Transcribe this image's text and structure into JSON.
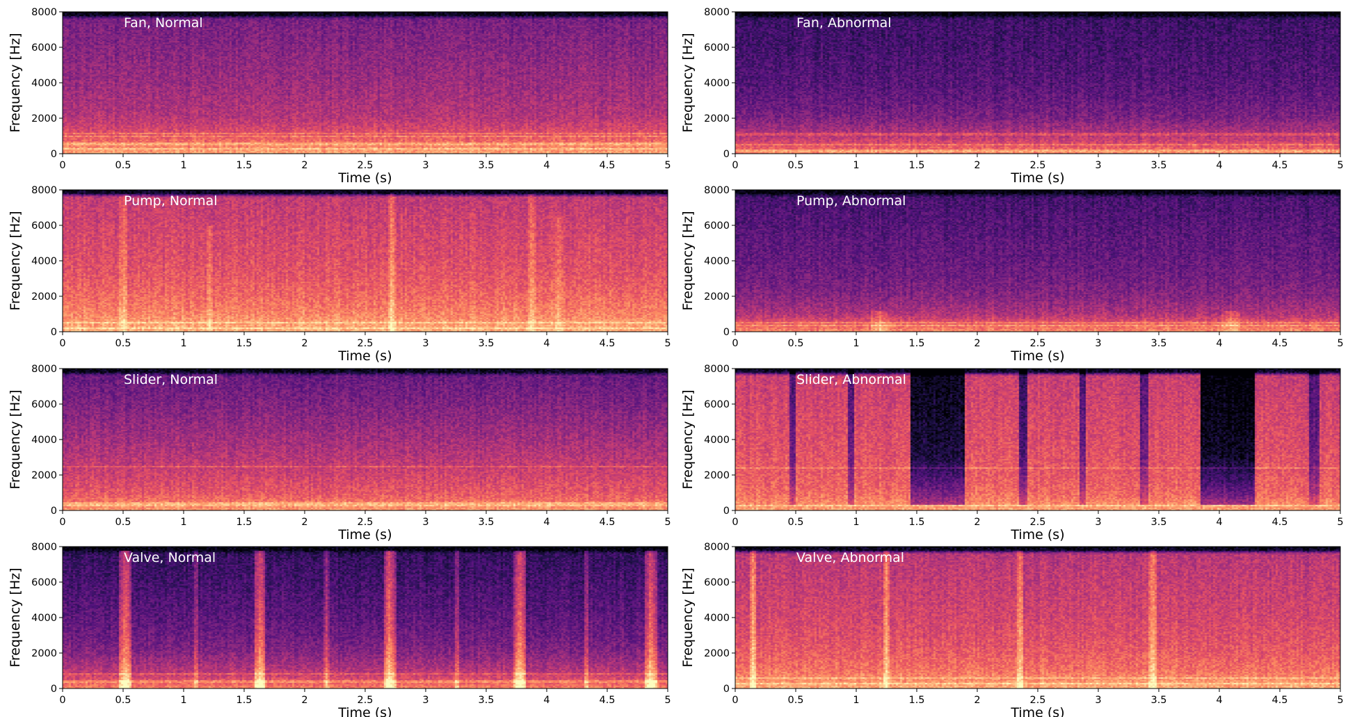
{
  "figure": {
    "background": "#ffffff"
  },
  "colormap": {
    "name": "magma",
    "stops": [
      "#000004",
      "#1d1147",
      "#51127c",
      "#822681",
      "#b73779",
      "#e75263",
      "#fc8961",
      "#fec287",
      "#fcfdbf"
    ]
  },
  "chart_data": [
    {
      "type": "heatmap",
      "title": "Fan, Normal",
      "xlabel": "Time (s)",
      "ylabel": "Frequency [Hz]",
      "xlim": [
        0,
        5
      ],
      "ylim": [
        0,
        8000
      ],
      "xticks": [
        "0",
        "0.5",
        "1",
        "1.5",
        "2",
        "2.5",
        "3",
        "3.5",
        "4",
        "4.5",
        "5"
      ],
      "yticks": [
        "0",
        "2000",
        "4000",
        "6000",
        "8000"
      ],
      "intensity_by_frequency": {
        "freq_hz": [
          0,
          500,
          1000,
          2000,
          3000,
          4000,
          6000,
          7600,
          7800,
          8000
        ],
        "level": [
          0.82,
          0.72,
          0.62,
          0.5,
          0.46,
          0.43,
          0.38,
          0.34,
          0.05,
          0.02
        ]
      },
      "harmonic_lines_hz": [
        300,
        550,
        1000,
        1150
      ],
      "bursts": [],
      "dips": []
    },
    {
      "type": "heatmap",
      "title": "Fan, Abnormal",
      "xlabel": "Time (s)",
      "ylabel": "Frequency [Hz]",
      "xlim": [
        0,
        5
      ],
      "ylim": [
        0,
        8000
      ],
      "xticks": [
        "0",
        "0.5",
        "1",
        "1.5",
        "2",
        "2.5",
        "3",
        "3.5",
        "4",
        "4.5",
        "5"
      ],
      "yticks": [
        "0",
        "2000",
        "4000",
        "6000",
        "8000"
      ],
      "intensity_by_frequency": {
        "freq_hz": [
          0,
          500,
          1000,
          2000,
          3000,
          4000,
          6000,
          7600,
          7800,
          8000
        ],
        "level": [
          0.74,
          0.6,
          0.5,
          0.36,
          0.3,
          0.26,
          0.22,
          0.2,
          0.03,
          0.01
        ]
      },
      "harmonic_lines_hz": [
        150,
        500,
        1100
      ],
      "bursts": [],
      "dips": []
    },
    {
      "type": "heatmap",
      "title": "Pump, Normal",
      "xlabel": "Time (s)",
      "ylabel": "Frequency [Hz]",
      "xlim": [
        0,
        5
      ],
      "ylim": [
        0,
        8000
      ],
      "xticks": [
        "0",
        "0.5",
        "1",
        "1.5",
        "2",
        "2.5",
        "3",
        "3.5",
        "4",
        "4.5",
        "5"
      ],
      "yticks": [
        "0",
        "2000",
        "4000",
        "6000",
        "8000"
      ],
      "intensity_by_frequency": {
        "freq_hz": [
          0,
          500,
          1000,
          2000,
          3000,
          4000,
          6000,
          7600,
          7800,
          8000
        ],
        "level": [
          0.84,
          0.8,
          0.74,
          0.68,
          0.63,
          0.6,
          0.56,
          0.52,
          0.08,
          0.03
        ]
      },
      "harmonic_lines_hz": [
        200,
        500
      ],
      "bursts": [
        {
          "t": 0.5,
          "width_s": 0.03,
          "fmax": 8000,
          "gain": 0.12
        },
        {
          "t": 1.22,
          "width_s": 0.03,
          "fmax": 6000,
          "gain": 0.1
        },
        {
          "t": 2.72,
          "width_s": 0.03,
          "fmax": 8000,
          "gain": 0.16
        },
        {
          "t": 3.88,
          "width_s": 0.03,
          "fmax": 8000,
          "gain": 0.12
        },
        {
          "t": 4.1,
          "width_s": 0.03,
          "fmax": 6500,
          "gain": 0.1
        }
      ],
      "dips": []
    },
    {
      "type": "heatmap",
      "title": "Pump, Abnormal",
      "xlabel": "Time (s)",
      "ylabel": "Frequency [Hz]",
      "xlim": [
        0,
        5
      ],
      "ylim": [
        0,
        8000
      ],
      "xticks": [
        "0",
        "0.5",
        "1",
        "1.5",
        "2",
        "2.5",
        "3",
        "3.5",
        "4",
        "4.5",
        "5"
      ],
      "yticks": [
        "0",
        "2000",
        "4000",
        "6000",
        "8000"
      ],
      "intensity_by_frequency": {
        "freq_hz": [
          0,
          500,
          1000,
          2000,
          3000,
          4000,
          6000,
          7600,
          7800,
          8000
        ],
        "level": [
          0.76,
          0.62,
          0.48,
          0.38,
          0.33,
          0.3,
          0.26,
          0.22,
          0.03,
          0.01
        ]
      },
      "harmonic_lines_hz": [
        350,
        500
      ],
      "bursts": [
        {
          "t": 1.2,
          "width_s": 0.08,
          "fmax": 1200,
          "gain": 0.14
        },
        {
          "t": 4.1,
          "width_s": 0.08,
          "fmax": 1200,
          "gain": 0.14
        }
      ],
      "dips": []
    },
    {
      "type": "heatmap",
      "title": "Slider, Normal",
      "xlabel": "Time (s)",
      "ylabel": "Frequency [Hz]",
      "xlim": [
        0,
        5
      ],
      "ylim": [
        0,
        8000
      ],
      "xticks": [
        "0",
        "0.5",
        "1",
        "1.5",
        "2",
        "2.5",
        "3",
        "3.5",
        "4",
        "4.5",
        "5"
      ],
      "yticks": [
        "0",
        "2000",
        "4000",
        "6000",
        "8000"
      ],
      "intensity_by_frequency": {
        "freq_hz": [
          0,
          500,
          1000,
          2000,
          3000,
          4000,
          6000,
          7600,
          7800,
          8000
        ],
        "level": [
          0.8,
          0.7,
          0.63,
          0.56,
          0.5,
          0.45,
          0.36,
          0.3,
          0.05,
          0.02
        ]
      },
      "harmonic_lines_hz": [
        250,
        400,
        2450
      ],
      "bursts": [],
      "dips": []
    },
    {
      "type": "heatmap",
      "title": "Slider, Abnormal",
      "xlabel": "Time (s)",
      "ylabel": "Frequency [Hz]",
      "xlim": [
        0,
        5
      ],
      "ylim": [
        0,
        8000
      ],
      "xticks": [
        "0",
        "0.5",
        "1",
        "1.5",
        "2",
        "2.5",
        "3",
        "3.5",
        "4",
        "4.5",
        "5"
      ],
      "yticks": [
        "0",
        "2000",
        "4000",
        "6000",
        "8000"
      ],
      "intensity_by_frequency": {
        "freq_hz": [
          0,
          500,
          1000,
          2000,
          3000,
          4000,
          6000,
          7600,
          7800,
          8000
        ],
        "level": [
          0.82,
          0.74,
          0.68,
          0.64,
          0.62,
          0.6,
          0.57,
          0.54,
          0.08,
          0.03
        ]
      },
      "harmonic_lines_hz": [
        250,
        2400
      ],
      "bursts": [],
      "dips": [
        {
          "t0": 0.45,
          "t1": 0.5,
          "depth": 0.3
        },
        {
          "t0": 0.93,
          "t1": 0.98,
          "depth": 0.3
        },
        {
          "t0": 1.45,
          "t1": 1.9,
          "depth": 0.5
        },
        {
          "t0": 2.35,
          "t1": 2.42,
          "depth": 0.35
        },
        {
          "t0": 2.85,
          "t1": 2.9,
          "depth": 0.3
        },
        {
          "t0": 3.35,
          "t1": 3.42,
          "depth": 0.3
        },
        {
          "t0": 3.85,
          "t1": 4.3,
          "depth": 0.55
        },
        {
          "t0": 4.75,
          "t1": 4.82,
          "depth": 0.3
        }
      ]
    },
    {
      "type": "heatmap",
      "title": "Valve, Normal",
      "xlabel": "Time (s)",
      "ylabel": "Frequency [Hz]",
      "xlim": [
        0,
        5
      ],
      "ylim": [
        0,
        8000
      ],
      "xticks": [
        "0",
        "0.5",
        "1",
        "1.5",
        "2",
        "2.5",
        "3",
        "3.5",
        "4",
        "4.5",
        "5"
      ],
      "yticks": [
        "0",
        "2000",
        "4000",
        "6000",
        "8000"
      ],
      "intensity_by_frequency": {
        "freq_hz": [
          0,
          500,
          1000,
          2000,
          3000,
          4000,
          6000,
          7600,
          7800,
          8000
        ],
        "level": [
          0.74,
          0.6,
          0.5,
          0.38,
          0.32,
          0.28,
          0.22,
          0.18,
          0.03,
          0.01
        ]
      },
      "harmonic_lines_hz": [
        400,
        800
      ],
      "bursts": [
        {
          "t": 0.52,
          "width_s": 0.05,
          "fmax": 8000,
          "gain": 0.38
        },
        {
          "t": 1.1,
          "width_s": 0.02,
          "fmax": 8000,
          "gain": 0.22
        },
        {
          "t": 1.63,
          "width_s": 0.05,
          "fmax": 8000,
          "gain": 0.38
        },
        {
          "t": 2.18,
          "width_s": 0.02,
          "fmax": 8000,
          "gain": 0.22
        },
        {
          "t": 2.7,
          "width_s": 0.05,
          "fmax": 8000,
          "gain": 0.38
        },
        {
          "t": 3.26,
          "width_s": 0.02,
          "fmax": 8000,
          "gain": 0.22
        },
        {
          "t": 3.78,
          "width_s": 0.05,
          "fmax": 8000,
          "gain": 0.38
        },
        {
          "t": 4.33,
          "width_s": 0.02,
          "fmax": 8000,
          "gain": 0.22
        },
        {
          "t": 4.86,
          "width_s": 0.05,
          "fmax": 8000,
          "gain": 0.38
        }
      ],
      "dips": []
    },
    {
      "type": "heatmap",
      "title": "Valve, Abnormal",
      "xlabel": "Time (s)",
      "ylabel": "Frequency [Hz]",
      "xlim": [
        0,
        5
      ],
      "ylim": [
        0,
        8000
      ],
      "xticks": [
        "0",
        "0.5",
        "1",
        "1.5",
        "2",
        "2.5",
        "3",
        "3.5",
        "4",
        "4.5",
        "5"
      ],
      "yticks": [
        "0",
        "2000",
        "4000",
        "6000",
        "8000"
      ],
      "intensity_by_frequency": {
        "freq_hz": [
          0,
          500,
          1000,
          2000,
          3000,
          4000,
          6000,
          7600,
          7800,
          8000
        ],
        "level": [
          0.84,
          0.76,
          0.7,
          0.64,
          0.6,
          0.57,
          0.53,
          0.5,
          0.06,
          0.02
        ]
      },
      "harmonic_lines_hz": [
        300,
        600
      ],
      "bursts": [
        {
          "t": 0.15,
          "width_s": 0.03,
          "fmax": 8000,
          "gain": 0.22
        },
        {
          "t": 1.25,
          "width_s": 0.03,
          "fmax": 8000,
          "gain": 0.22
        },
        {
          "t": 2.35,
          "width_s": 0.03,
          "fmax": 8000,
          "gain": 0.22
        },
        {
          "t": 3.45,
          "width_s": 0.03,
          "fmax": 8000,
          "gain": 0.22
        }
      ],
      "dips": []
    }
  ]
}
